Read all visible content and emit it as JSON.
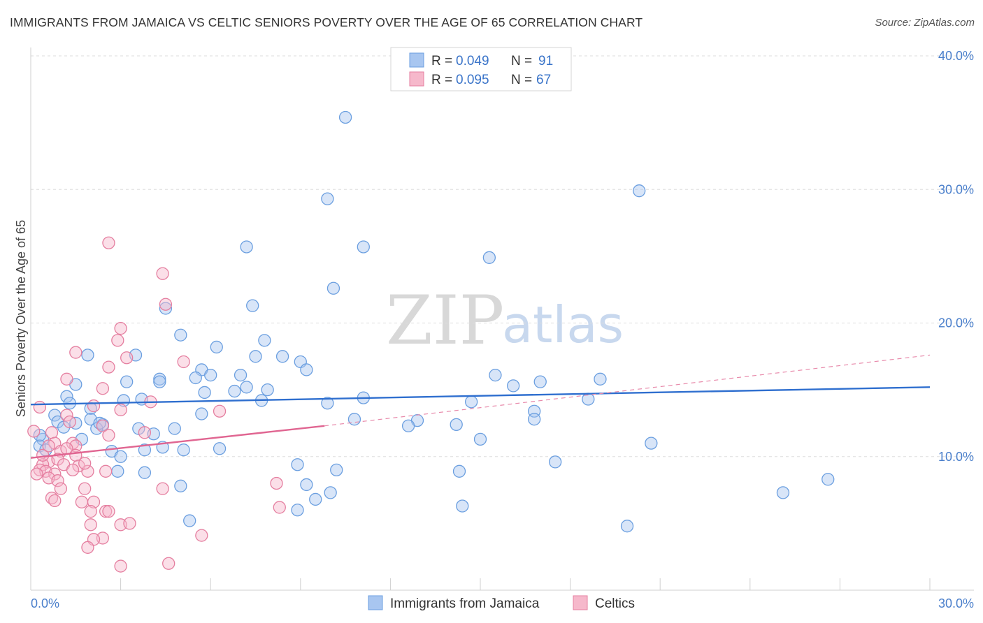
{
  "header": {
    "title": "IMMIGRANTS FROM JAMAICA VS CELTIC SENIORS POVERTY OVER THE AGE OF 65 CORRELATION CHART",
    "source": "Source: ZipAtlas.com"
  },
  "watermark": {
    "zip": "ZIP",
    "atlas": "atlas"
  },
  "legend_top": [
    {
      "r_label": "R =",
      "r_value": "0.049",
      "n_label": "N =",
      "n_value": "91"
    },
    {
      "r_label": "R =",
      "r_value": "0.095",
      "n_label": "N =",
      "n_value": "67"
    }
  ],
  "chart_data": {
    "type": "scatter",
    "title": "IMMIGRANTS FROM JAMAICA VS CELTIC SENIORS POVERTY OVER THE AGE OF 65 CORRELATION CHART",
    "xlabel": "",
    "ylabel": "Seniors Poverty Over the Age of 65",
    "xlim": [
      0,
      30
    ],
    "ylim": [
      0,
      40
    ],
    "x_ticks": [
      "0.0%",
      "30.0%"
    ],
    "y_ticks": [
      {
        "value": 10,
        "label": "10.0%"
      },
      {
        "value": 20,
        "label": "20.0%"
      },
      {
        "value": 30,
        "label": "30.0%"
      },
      {
        "value": 40,
        "label": "40.0%"
      }
    ],
    "grid": true,
    "legend_position": "bottom",
    "series": [
      {
        "name": "Immigrants from Jamaica",
        "color": "#6b9fe0",
        "fill": "#a8c6f0",
        "trend": {
          "x": [
            0,
            30
          ],
          "y": [
            13.9,
            15.2
          ]
        },
        "points": [
          [
            10.5,
            35.4
          ],
          [
            20.3,
            29.9
          ],
          [
            9.9,
            29.3
          ],
          [
            7.2,
            25.7
          ],
          [
            11.1,
            25.7
          ],
          [
            15.3,
            24.9
          ],
          [
            10.1,
            22.6
          ],
          [
            7.4,
            21.3
          ],
          [
            4.5,
            21.1
          ],
          [
            5.0,
            19.1
          ],
          [
            7.8,
            18.7
          ],
          [
            6.2,
            18.2
          ],
          [
            1.9,
            17.6
          ],
          [
            3.5,
            17.6
          ],
          [
            7.5,
            17.5
          ],
          [
            8.4,
            17.5
          ],
          [
            9.0,
            17.1
          ],
          [
            5.7,
            16.5
          ],
          [
            6.0,
            16.1
          ],
          [
            9.2,
            16.5
          ],
          [
            7.0,
            16.1
          ],
          [
            5.5,
            15.9
          ],
          [
            4.3,
            15.8
          ],
          [
            3.2,
            15.6
          ],
          [
            1.5,
            15.4
          ],
          [
            7.2,
            15.2
          ],
          [
            7.9,
            15.0
          ],
          [
            5.8,
            14.8
          ],
          [
            6.8,
            14.9
          ],
          [
            15.5,
            16.1
          ],
          [
            16.1,
            15.3
          ],
          [
            17.0,
            15.6
          ],
          [
            19.0,
            15.8
          ],
          [
            4.3,
            15.6
          ],
          [
            3.1,
            14.2
          ],
          [
            3.7,
            14.3
          ],
          [
            1.2,
            14.5
          ],
          [
            11.1,
            14.4
          ],
          [
            14.7,
            14.1
          ],
          [
            18.6,
            14.3
          ],
          [
            9.9,
            14.0
          ],
          [
            7.7,
            14.2
          ],
          [
            1.3,
            14.0
          ],
          [
            2.0,
            13.6
          ],
          [
            5.7,
            13.2
          ],
          [
            16.8,
            13.4
          ],
          [
            12.9,
            12.7
          ],
          [
            12.6,
            12.3
          ],
          [
            14.2,
            12.4
          ],
          [
            0.8,
            13.1
          ],
          [
            0.9,
            12.6
          ],
          [
            1.1,
            12.2
          ],
          [
            1.5,
            12.5
          ],
          [
            2.4,
            12.4
          ],
          [
            2.2,
            12.1
          ],
          [
            2.0,
            12.8
          ],
          [
            3.6,
            12.1
          ],
          [
            4.1,
            11.7
          ],
          [
            4.8,
            12.1
          ],
          [
            2.3,
            12.5
          ],
          [
            1.7,
            11.3
          ],
          [
            15.0,
            11.3
          ],
          [
            20.7,
            11.0
          ],
          [
            0.4,
            11.3
          ],
          [
            0.3,
            10.8
          ],
          [
            0.5,
            10.5
          ],
          [
            3.8,
            10.5
          ],
          [
            4.4,
            10.7
          ],
          [
            5.1,
            10.5
          ],
          [
            6.3,
            10.6
          ],
          [
            2.7,
            10.4
          ],
          [
            3.0,
            10.0
          ],
          [
            17.5,
            9.6
          ],
          [
            8.9,
            9.4
          ],
          [
            10.2,
            9.0
          ],
          [
            14.3,
            8.9
          ],
          [
            2.9,
            8.9
          ],
          [
            3.8,
            8.8
          ],
          [
            5.0,
            7.8
          ],
          [
            9.2,
            7.9
          ],
          [
            10.0,
            7.3
          ],
          [
            9.5,
            6.8
          ],
          [
            14.4,
            6.3
          ],
          [
            8.9,
            6.0
          ],
          [
            5.3,
            5.2
          ],
          [
            0.3,
            11.6
          ],
          [
            19.9,
            4.8
          ],
          [
            25.1,
            7.3
          ],
          [
            26.6,
            8.3
          ],
          [
            16.8,
            12.8
          ],
          [
            10.8,
            12.8
          ]
        ]
      },
      {
        "name": "Celtics",
        "color": "#e57fa0",
        "fill": "#f6b8cb",
        "trend": {
          "x": [
            0,
            9.8
          ],
          "y": [
            9.9,
            12.3
          ]
        },
        "trend_dashed": {
          "x": [
            9.8,
            30
          ],
          "y": [
            12.3,
            17.6
          ]
        },
        "points": [
          [
            2.6,
            26.0
          ],
          [
            4.4,
            23.7
          ],
          [
            4.5,
            21.4
          ],
          [
            3.0,
            19.6
          ],
          [
            2.9,
            18.7
          ],
          [
            1.5,
            17.8
          ],
          [
            3.2,
            17.4
          ],
          [
            5.1,
            17.1
          ],
          [
            2.6,
            16.7
          ],
          [
            1.2,
            15.8
          ],
          [
            2.4,
            15.1
          ],
          [
            4.0,
            14.1
          ],
          [
            2.1,
            13.8
          ],
          [
            0.3,
            13.7
          ],
          [
            6.3,
            13.4
          ],
          [
            3.0,
            13.5
          ],
          [
            1.2,
            13.1
          ],
          [
            1.3,
            12.6
          ],
          [
            2.4,
            12.3
          ],
          [
            3.8,
            11.8
          ],
          [
            2.6,
            11.6
          ],
          [
            0.7,
            11.8
          ],
          [
            1.4,
            11.0
          ],
          [
            1.5,
            10.8
          ],
          [
            0.8,
            11.0
          ],
          [
            1.0,
            10.4
          ],
          [
            1.2,
            10.6
          ],
          [
            1.5,
            10.1
          ],
          [
            0.6,
            9.6
          ],
          [
            0.9,
            9.8
          ],
          [
            1.1,
            9.4
          ],
          [
            1.6,
            9.3
          ],
          [
            0.4,
            9.4
          ],
          [
            0.3,
            9.0
          ],
          [
            0.5,
            8.9
          ],
          [
            0.8,
            8.7
          ],
          [
            0.6,
            8.4
          ],
          [
            0.9,
            8.2
          ],
          [
            0.2,
            8.7
          ],
          [
            2.5,
            8.9
          ],
          [
            1.9,
            8.9
          ],
          [
            8.2,
            8.0
          ],
          [
            4.4,
            7.6
          ],
          [
            1.8,
            7.6
          ],
          [
            1.0,
            7.6
          ],
          [
            0.7,
            6.9
          ],
          [
            0.8,
            6.7
          ],
          [
            1.7,
            6.6
          ],
          [
            2.1,
            6.6
          ],
          [
            8.3,
            6.2
          ],
          [
            2.5,
            5.9
          ],
          [
            2.0,
            5.9
          ],
          [
            2.6,
            5.9
          ],
          [
            2.0,
            4.9
          ],
          [
            3.0,
            4.9
          ],
          [
            3.3,
            5.0
          ],
          [
            5.7,
            4.1
          ],
          [
            2.4,
            3.9
          ],
          [
            2.1,
            3.8
          ],
          [
            1.9,
            3.2
          ],
          [
            3.0,
            1.8
          ],
          [
            4.6,
            2.0
          ],
          [
            0.1,
            11.9
          ],
          [
            0.4,
            10.1
          ],
          [
            1.4,
            9.0
          ],
          [
            1.8,
            9.5
          ],
          [
            0.6,
            10.8
          ]
        ]
      }
    ]
  },
  "legend_bottom": [
    {
      "label": "Immigrants from Jamaica"
    },
    {
      "label": "Celtics"
    }
  ]
}
